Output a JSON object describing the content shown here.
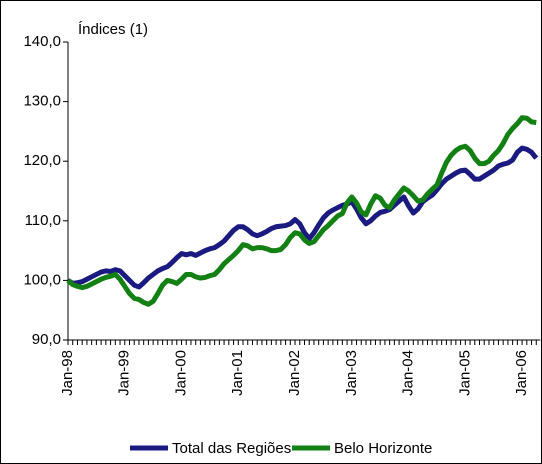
{
  "chart_data": {
    "type": "line",
    "title": "Índices (1)",
    "categories": [
      "Jan-98",
      null,
      null,
      null,
      null,
      null,
      null,
      null,
      null,
      null,
      null,
      null,
      "Jan-99",
      null,
      null,
      null,
      null,
      null,
      null,
      null,
      null,
      null,
      null,
      null,
      "Jan-00",
      null,
      null,
      null,
      null,
      null,
      null,
      null,
      null,
      null,
      null,
      null,
      "Jan-01",
      null,
      null,
      null,
      null,
      null,
      null,
      null,
      null,
      null,
      null,
      null,
      "Jan-02",
      null,
      null,
      null,
      null,
      null,
      null,
      null,
      null,
      null,
      null,
      null,
      "Jan-03",
      null,
      null,
      null,
      null,
      null,
      null,
      null,
      null,
      null,
      null,
      null,
      "Jan-04",
      null,
      null,
      null,
      null,
      null,
      null,
      null,
      null,
      null,
      null,
      null,
      "Jan-05",
      null,
      null,
      null,
      null,
      null,
      null,
      null,
      null,
      null,
      null,
      null,
      "Jan-06",
      null,
      null,
      null
    ],
    "series": [
      {
        "name": "Total das Regiões",
        "color": "#1a1a80",
        "values": [
          100.0,
          99.5,
          99.6,
          99.8,
          100.2,
          100.6,
          101.0,
          101.4,
          101.6,
          101.5,
          101.8,
          101.6,
          100.8,
          100.0,
          99.2,
          98.9,
          99.6,
          100.4,
          101.0,
          101.6,
          102.0,
          102.3,
          103.0,
          103.8,
          104.5,
          104.3,
          104.5,
          104.2,
          104.6,
          105.0,
          105.3,
          105.5,
          106.0,
          106.6,
          107.5,
          108.4,
          109.0,
          109.0,
          108.5,
          107.8,
          107.5,
          107.8,
          108.2,
          108.7,
          109.0,
          109.1,
          109.2,
          109.5,
          110.2,
          109.5,
          108.0,
          107.0,
          108.0,
          109.3,
          110.5,
          111.3,
          111.8,
          112.2,
          112.6,
          112.8,
          113.2,
          112.0,
          110.5,
          109.5,
          110.0,
          110.8,
          111.4,
          111.6,
          111.9,
          112.6,
          113.3,
          114.0,
          112.5,
          111.3,
          112.0,
          113.2,
          113.8,
          114.3,
          115.2,
          116.2,
          117.0,
          117.5,
          118.0,
          118.4,
          118.5,
          117.8,
          117.0,
          117.0,
          117.5,
          118.0,
          118.5,
          119.2,
          119.5,
          119.7,
          120.2,
          121.5,
          122.2,
          122.0,
          121.5,
          120.5
        ]
      },
      {
        "name": "Belo Horizonte",
        "color": "#138013",
        "values": [
          100.0,
          99.3,
          99.0,
          98.8,
          99.0,
          99.4,
          99.8,
          100.2,
          100.5,
          100.7,
          101.0,
          100.2,
          99.0,
          97.8,
          97.0,
          96.8,
          96.3,
          96.0,
          96.5,
          97.8,
          99.2,
          100.0,
          99.8,
          99.5,
          100.2,
          101.0,
          101.0,
          100.6,
          100.4,
          100.5,
          100.8,
          101.0,
          101.8,
          102.8,
          103.5,
          104.2,
          105.0,
          106.0,
          105.8,
          105.3,
          105.5,
          105.5,
          105.3,
          105.0,
          105.0,
          105.2,
          106.0,
          107.2,
          108.0,
          107.8,
          106.8,
          106.2,
          106.5,
          107.5,
          108.5,
          109.2,
          110.0,
          110.8,
          111.2,
          113.0,
          114.0,
          113.0,
          111.5,
          111.0,
          112.8,
          114.2,
          113.8,
          112.6,
          112.2,
          113.5,
          114.5,
          115.5,
          115.0,
          114.2,
          113.3,
          113.5,
          114.5,
          115.3,
          116.0,
          118.0,
          119.8,
          121.0,
          121.8,
          122.3,
          122.5,
          121.8,
          120.5,
          119.6,
          119.6,
          120.0,
          121.0,
          121.8,
          123.0,
          124.5,
          125.5,
          126.3,
          127.3,
          127.2,
          126.6,
          126.5
        ]
      }
    ],
    "ylim": [
      90,
      140
    ],
    "yticks": [
      {
        "value": 90,
        "label": "90,0"
      },
      {
        "value": 100,
        "label": "100,0"
      },
      {
        "value": 110,
        "label": "110,0"
      },
      {
        "value": 120,
        "label": "120,0"
      },
      {
        "value": 130,
        "label": "130,0"
      },
      {
        "value": 140,
        "label": "140,0"
      }
    ],
    "grid": false
  }
}
